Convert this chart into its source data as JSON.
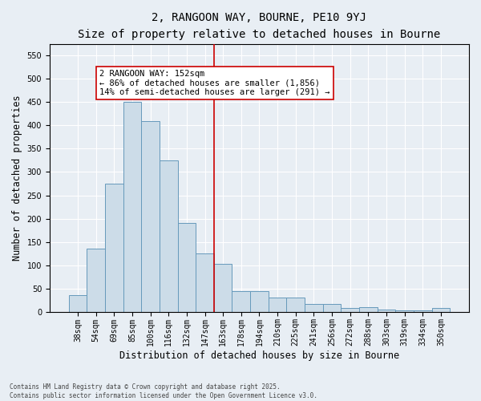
{
  "title": "2, RANGOON WAY, BOURNE, PE10 9YJ",
  "subtitle": "Size of property relative to detached houses in Bourne",
  "xlabel": "Distribution of detached houses by size in Bourne",
  "ylabel": "Number of detached properties",
  "footnote1": "Contains HM Land Registry data © Crown copyright and database right 2025.",
  "footnote2": "Contains public sector information licensed under the Open Government Licence v3.0.",
  "categories": [
    "38sqm",
    "54sqm",
    "69sqm",
    "85sqm",
    "100sqm",
    "116sqm",
    "132sqm",
    "147sqm",
    "163sqm",
    "178sqm",
    "194sqm",
    "210sqm",
    "225sqm",
    "241sqm",
    "256sqm",
    "272sqm",
    "288sqm",
    "303sqm",
    "319sqm",
    "334sqm",
    "350sqm"
  ],
  "values": [
    35,
    135,
    275,
    450,
    410,
    325,
    190,
    125,
    102,
    44,
    44,
    30,
    30,
    16,
    16,
    7,
    10,
    4,
    3,
    3,
    7
  ],
  "bar_color": "#ccdce8",
  "bar_edge_color": "#6699bb",
  "vline_x_index": 7,
  "vline_color": "#cc0000",
  "annotation_text": "2 RANGOON WAY: 152sqm\n← 86% of detached houses are smaller (1,856)\n14% of semi-detached houses are larger (291) →",
  "annotation_box_color": "#ffffff",
  "annotation_box_edge": "#cc0000",
  "ylim": [
    0,
    575
  ],
  "yticks": [
    0,
    50,
    100,
    150,
    200,
    250,
    300,
    350,
    400,
    450,
    500,
    550
  ],
  "background_color": "#e8eef4",
  "grid_color": "#ffffff",
  "title_fontsize": 10,
  "subtitle_fontsize": 9,
  "axis_label_fontsize": 8.5,
  "tick_fontsize": 7,
  "annotation_fontsize": 7.5,
  "footnote_fontsize": 5.5
}
